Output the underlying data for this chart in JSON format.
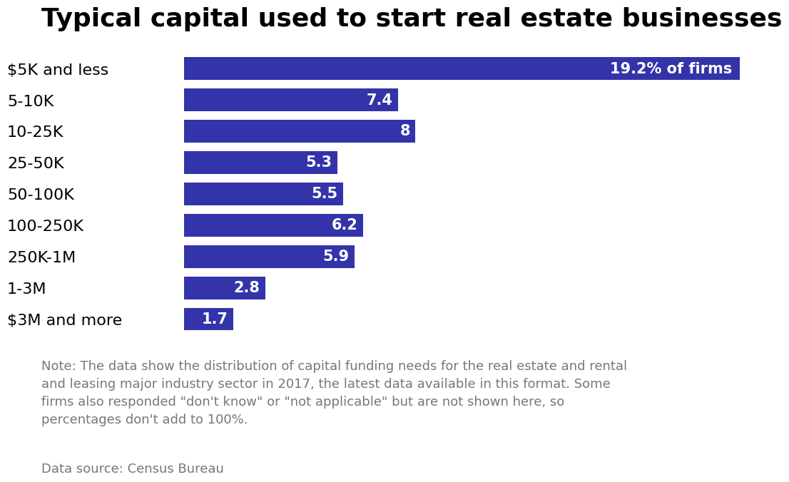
{
  "title": "Typical capital used to start real estate businesses",
  "categories": [
    "$5K and less",
    "5-10K",
    "10-25K",
    "25-50K",
    "50-100K",
    "100-250K",
    "250K-1M",
    "1-3M",
    "$3M and more"
  ],
  "values": [
    19.2,
    7.4,
    8.0,
    5.3,
    5.5,
    6.2,
    5.9,
    2.8,
    1.7
  ],
  "bar_color": "#3333AA",
  "label_color": "#FFFFFF",
  "label_special": "19.2% of firms",
  "xlim": [
    0,
    20.5
  ],
  "note_text": "Note: The data show the distribution of capital funding needs for the real estate and rental\nand leasing major industry sector in 2017, the latest data available in this format. Some\nfirms also responded \"don't know\" or \"not applicable\" but are not shown here, so\npercentages don't add to 100%.",
  "source_text": "Data source: Census Bureau",
  "title_fontsize": 26,
  "label_fontsize": 15,
  "category_fontsize": 16,
  "note_fontsize": 13,
  "source_fontsize": 13,
  "background_color": "#FFFFFF"
}
